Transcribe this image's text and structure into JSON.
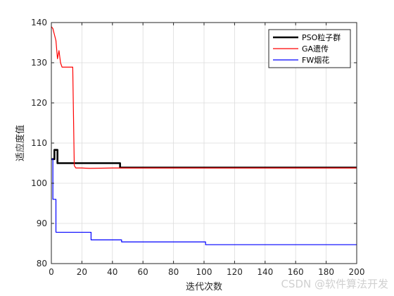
{
  "chart_data": {
    "type": "line",
    "title": "",
    "xlabel": "迭代次数",
    "ylabel": "适应度值",
    "xlim": [
      0,
      200
    ],
    "ylim": [
      80,
      140
    ],
    "xticks": [
      0,
      20,
      40,
      60,
      80,
      100,
      120,
      140,
      160,
      180,
      200
    ],
    "yticks": [
      80,
      90,
      100,
      110,
      120,
      130,
      140
    ],
    "grid": true,
    "legend_position": "top-right",
    "series": [
      {
        "name": "PSO粒子群",
        "color": "#000000",
        "step": true,
        "x": [
          0,
          2,
          3,
          4,
          44,
          45,
          200
        ],
        "y": [
          106.0,
          108.3,
          108.3,
          105.0,
          105.0,
          103.9,
          103.9
        ]
      },
      {
        "name": "GA遗传",
        "color": "#ff0000",
        "step": false,
        "x": [
          0,
          1,
          2,
          3,
          4,
          5,
          6,
          7,
          8,
          9,
          10,
          12,
          14,
          15,
          16,
          20,
          25,
          40,
          200
        ],
        "y": [
          139.0,
          138.5,
          137.0,
          135.5,
          131.0,
          133.0,
          130.0,
          128.9,
          128.9,
          128.9,
          128.9,
          128.9,
          128.9,
          104.4,
          103.8,
          103.8,
          103.7,
          103.8,
          103.8
        ]
      },
      {
        "name": "FW烟花",
        "color": "#0000ff",
        "step": true,
        "x": [
          0,
          1,
          3,
          26,
          46,
          101,
          200
        ],
        "y": [
          106.0,
          96.0,
          87.8,
          85.9,
          85.4,
          84.7,
          84.7
        ]
      }
    ]
  },
  "watermark": "CSDN @软件算法开发"
}
